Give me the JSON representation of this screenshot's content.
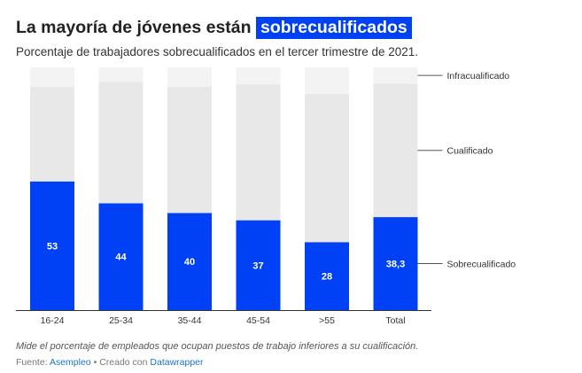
{
  "header": {
    "title_prefix": "La mayoría de jóvenes están",
    "title_highlight": "sobrecualificados",
    "subtitle": "Porcentaje de trabajadores sobrecualificados en el tercer trimestre de 2021."
  },
  "footer": {
    "note": "Mide el porcentaje de empleados que ocupan puestos de trabajo inferiores a su cualificación.",
    "source_label": "Fuente:",
    "source_link": "Asempleo",
    "separator": "•",
    "created_label": "Creado con",
    "created_link": "Datawrapper"
  },
  "colors": {
    "sobrecualificado": "#0041f5",
    "cualificado": "#e8e8e8",
    "infracualificado": "#f3f3f3",
    "highlight": "#0041f5",
    "link": "#1a73c7"
  },
  "chart_data": {
    "type": "bar",
    "stacked": true,
    "categories": [
      "16-24",
      "25-34",
      "35-44",
      "45-54",
      ">55",
      "Total"
    ],
    "series": [
      {
        "name": "Sobrecualificado",
        "values": [
          53,
          44,
          40,
          37,
          28,
          38.3
        ],
        "labels": [
          "53",
          "44",
          "40",
          "37",
          "28",
          "38,3"
        ]
      },
      {
        "name": "Cualificado",
        "values": [
          39,
          50,
          52,
          56,
          61,
          55
        ]
      },
      {
        "name": "Infracualificado",
        "values": [
          8,
          6,
          8,
          7,
          11,
          6.7
        ]
      }
    ],
    "ylim": [
      0,
      100
    ],
    "legend": "right, inline labels",
    "grid": false
  }
}
